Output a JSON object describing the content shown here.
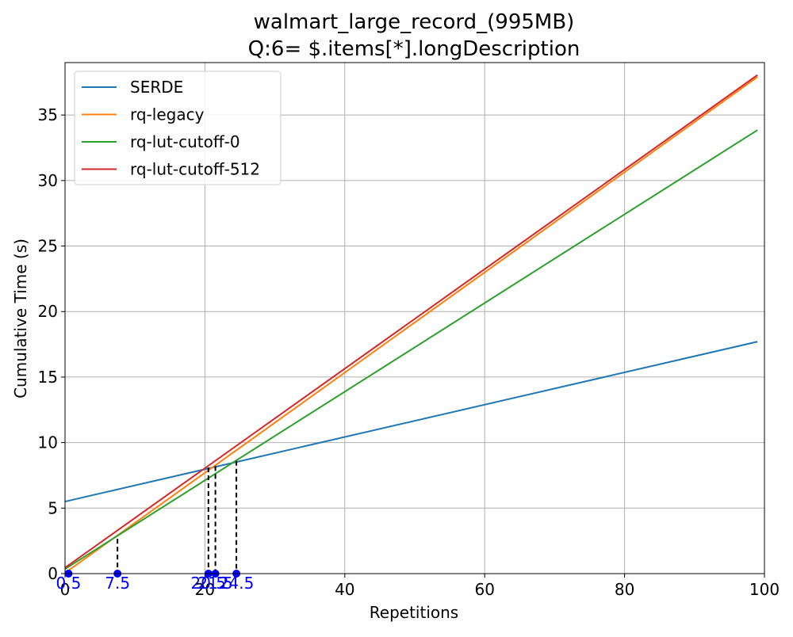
{
  "chart_data": {
    "type": "line",
    "title": [
      "walmart_large_record_(995MB)",
      "Q:6= $.items[*].longDescription"
    ],
    "xlabel": "Repetitions",
    "ylabel": "Cumulative Time (s)",
    "xlim": [
      0,
      100
    ],
    "ylim": [
      0,
      39
    ],
    "xticks": [
      0,
      20,
      40,
      60,
      80,
      100
    ],
    "yticks": [
      0,
      5,
      10,
      15,
      20,
      25,
      30,
      35
    ],
    "grid": true,
    "legend_position": "upper-left",
    "series": [
      {
        "name": "SERDE",
        "color": "#1f77b4",
        "x": [
          0,
          99
        ],
        "y": [
          5.5,
          17.7
        ]
      },
      {
        "name": "rq-legacy",
        "color": "#ff7f0e",
        "x": [
          0,
          99
        ],
        "y": [
          0.05,
          37.9
        ]
      },
      {
        "name": "rq-lut-cutoff-0",
        "color": "#2ca02c",
        "x": [
          0,
          99
        ],
        "y": [
          0.35,
          33.85
        ]
      },
      {
        "name": "rq-lut-cutoff-512",
        "color": "#d62728",
        "x": [
          0,
          99
        ],
        "y": [
          0.45,
          38.05
        ]
      }
    ],
    "crossover_markers": [
      {
        "x": 0.5,
        "y": 0.2,
        "label": "0.5"
      },
      {
        "x": 7.5,
        "y": 2.65,
        "label": "7.5"
      },
      {
        "x": 20.5,
        "y": 8.1,
        "label": "20.5"
      },
      {
        "x": 21.5,
        "y": 8.2,
        "label": "21.5"
      },
      {
        "x": 24.5,
        "y": 8.6,
        "label": "24.5"
      }
    ],
    "marker_color": "#0000ff"
  }
}
